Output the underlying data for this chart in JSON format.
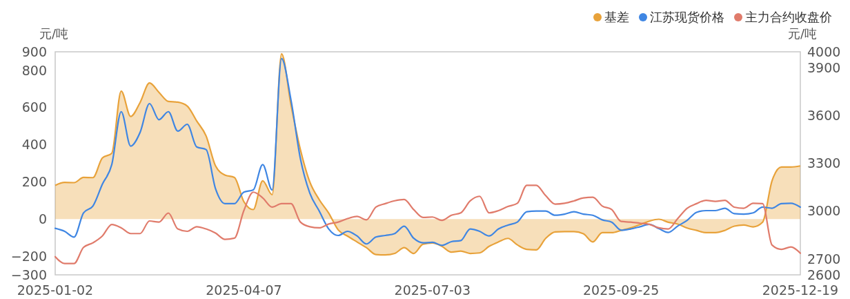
{
  "chart_data": {
    "type": "line",
    "ylabel": "元/吨",
    "y2label": "元/吨",
    "legend": "top right",
    "categories": [
      "2025-01-02",
      null,
      null,
      null,
      null,
      null,
      null,
      null,
      null,
      null,
      null,
      null,
      null,
      null,
      null,
      null,
      null,
      null,
      null,
      null,
      "2025-04-07",
      null,
      null,
      null,
      null,
      null,
      null,
      null,
      null,
      null,
      null,
      null,
      null,
      null,
      null,
      null,
      null,
      null,
      null,
      null,
      "2025-07-03",
      null,
      null,
      null,
      null,
      null,
      null,
      null,
      null,
      null,
      null,
      null,
      null,
      null,
      null,
      null,
      null,
      null,
      null,
      null,
      "2025-09-25",
      null,
      null,
      null,
      null,
      null,
      null,
      null,
      null,
      null,
      null,
      null,
      null,
      null,
      null,
      null,
      null,
      null,
      null,
      "2025-12-19"
    ],
    "ylim": [
      -300,
      900
    ],
    "yticks": [
      -300,
      -200,
      0,
      200,
      400,
      600,
      800,
      900
    ],
    "y2lim": [
      2600,
      4000
    ],
    "y2ticks": [
      2600,
      2700,
      3000,
      3300,
      3600,
      3900,
      4000
    ],
    "series": [
      {
        "name": "基差",
        "type": "area",
        "color": "#e8a23a",
        "values": [
          181,
          197,
          196,
          224,
          223,
          329,
          354,
          689,
          552,
          627,
          732,
          682,
          633,
          629,
          608,
          528,
          447,
          286,
          237,
          224,
          94,
          51,
          206,
          131,
          889,
          614,
          373,
          199,
          104,
          32,
          -58,
          -92,
          -123,
          -154,
          -191,
          -193,
          -185,
          -154,
          -185,
          -135,
          -129,
          -147,
          -178,
          -172,
          -185,
          -182,
          -147,
          -123,
          -104,
          -139,
          -163,
          -166,
          -104,
          -69,
          -67,
          -67,
          -79,
          -123,
          -73,
          -73,
          -61,
          -48,
          -30,
          -11,
          -1,
          -17,
          -27,
          -48,
          -61,
          -73,
          -73,
          -61,
          -38,
          -32,
          -42,
          -17,
          206,
          280,
          280,
          286
        ]
      },
      {
        "name": "江苏现货价格",
        "axis": "y2",
        "color": "#3f86e3",
        "values": [
          2892,
          2873,
          2837,
          2989,
          3032,
          3169,
          3292,
          3624,
          3408,
          3494,
          3675,
          3574,
          3624,
          3502,
          3545,
          3403,
          3386,
          3140,
          3047,
          3047,
          3119,
          3133,
          3292,
          3133,
          3957,
          3697,
          3328,
          3112,
          3000,
          2888,
          2847,
          2873,
          2844,
          2794,
          2837,
          2847,
          2859,
          2905,
          2830,
          2801,
          2804,
          2785,
          2808,
          2815,
          2888,
          2873,
          2844,
          2888,
          2912,
          2931,
          2996,
          3000,
          3000,
          2974,
          2981,
          2996,
          2981,
          2974,
          2945,
          2931,
          2880,
          2888,
          2902,
          2917,
          2890,
          2866,
          2906,
          2942,
          2992,
          3003,
          3003,
          3018,
          2984,
          2981,
          2989,
          3025,
          3018,
          3047,
          3049,
          3025
        ]
      },
      {
        "name": "主力合约收盘价",
        "axis": "y2",
        "color": "#e07b6b",
        "values": [
          2714,
          2671,
          2671,
          2772,
          2801,
          2844,
          2916,
          2895,
          2859,
          2859,
          2938,
          2931,
          2988,
          2888,
          2873,
          2902,
          2888,
          2862,
          2823,
          2830,
          3003,
          3119,
          3083,
          3025,
          3047,
          3047,
          2931,
          2902,
          2895,
          2919,
          2931,
          2953,
          2967,
          2945,
          3025,
          3047,
          3065,
          3073,
          3010,
          2960,
          2963,
          2942,
          2974,
          2989,
          3064,
          3093,
          2989,
          3003,
          3029,
          3049,
          3162,
          3162,
          3097,
          3044,
          3049,
          3064,
          3083,
          3087,
          3032,
          3010,
          2935,
          2931,
          2924,
          2917,
          2895,
          2888,
          2953,
          3018,
          3047,
          3068,
          3061,
          3068,
          3025,
          3018,
          3049,
          3047,
          2787,
          2760,
          2775,
          2736
        ]
      }
    ]
  }
}
